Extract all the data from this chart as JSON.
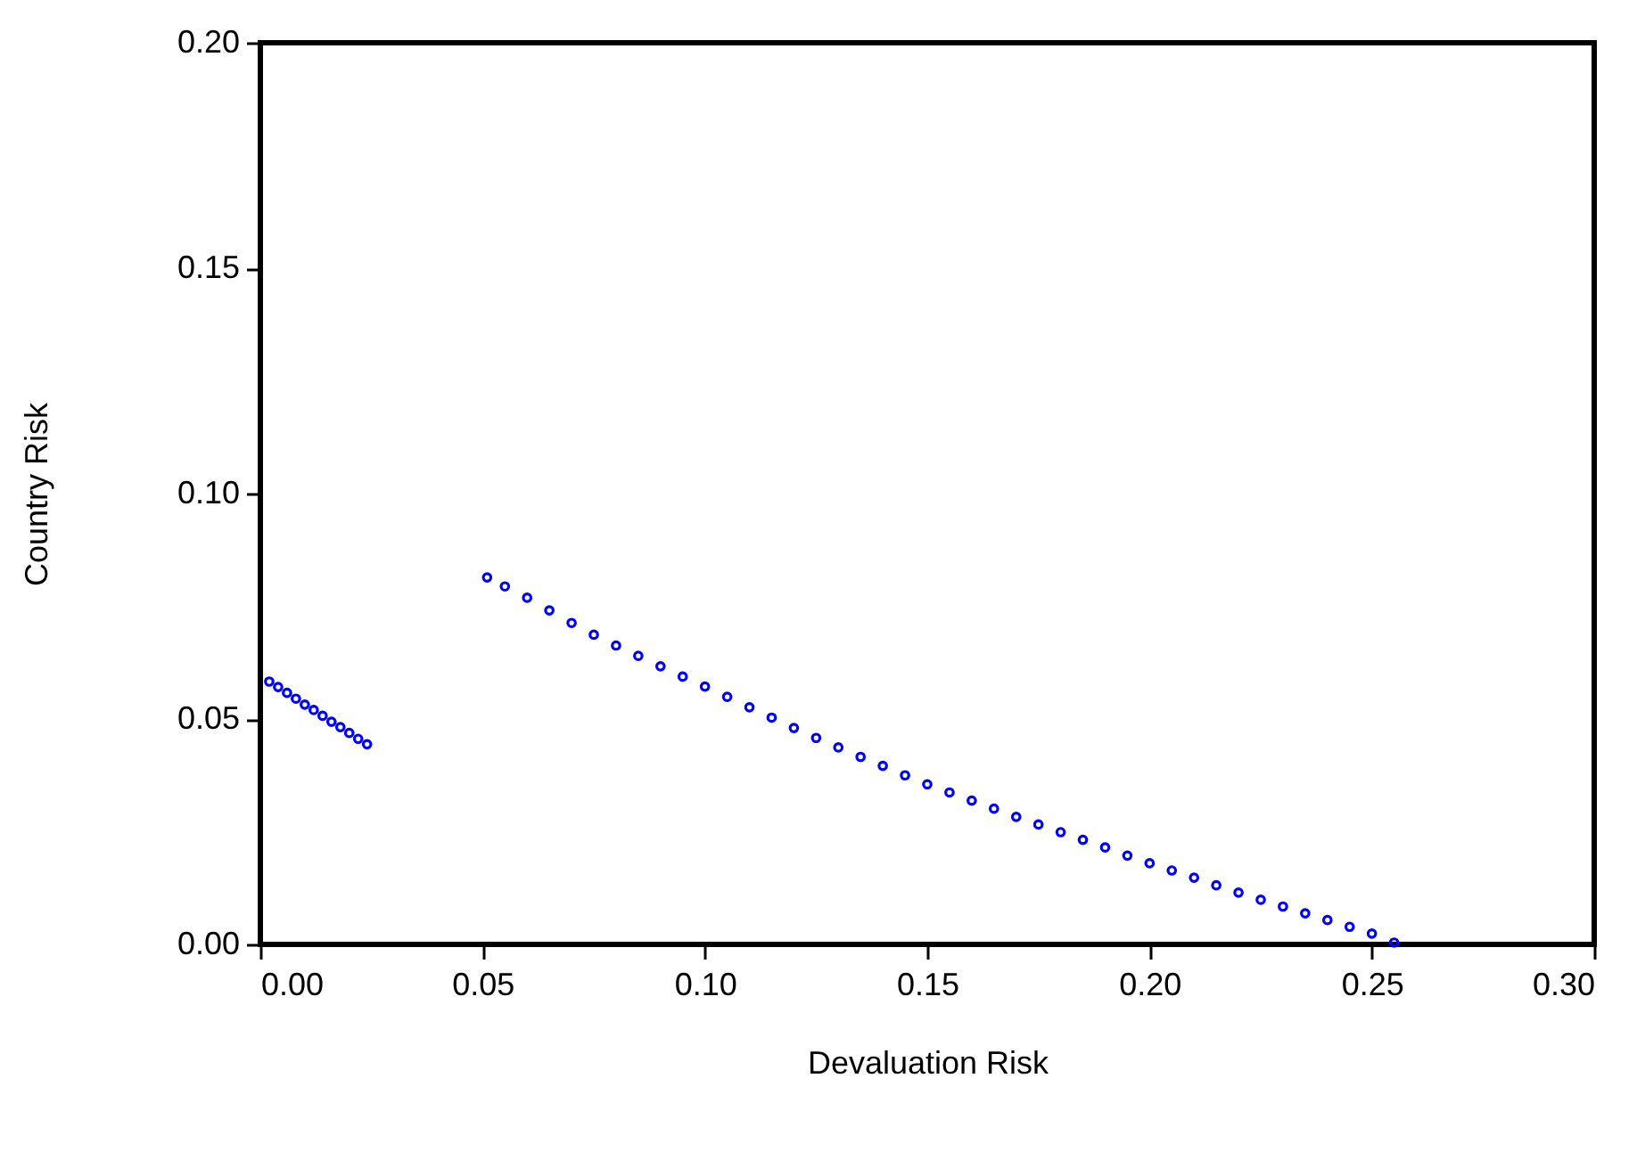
{
  "chart_data": {
    "type": "scatter",
    "xlabel": "Devaluation Risk",
    "ylabel": "Country Risk",
    "xlim": [
      0,
      0.3
    ],
    "xticks": [
      {
        "value": 0,
        "label": "0.00"
      },
      {
        "value": 0.05,
        "label": "0.05"
      },
      {
        "value": 0.1,
        "label": "0.10"
      },
      {
        "value": 0.15,
        "label": "0.15"
      },
      {
        "value": 0.2,
        "label": "0.20"
      },
      {
        "value": 0.25,
        "label": "0.25"
      },
      {
        "value": 0.3,
        "label": "0.30"
      }
    ],
    "ylim": [
      0,
      0.2
    ],
    "yticks": [
      {
        "value": 0,
        "label": "0.00"
      },
      {
        "value": 0.05,
        "label": "0.05"
      },
      {
        "value": 0.1,
        "label": "0.10"
      },
      {
        "value": 0.15,
        "label": "0.15"
      },
      {
        "value": 0.2,
        "label": "0.20"
      }
    ],
    "grid": false,
    "legend": false,
    "marker": "circle",
    "series": [
      {
        "color": "#0000ff",
        "x": [
          0.002,
          0.004,
          0.006,
          0.008,
          0.01,
          0.012,
          0.014,
          0.016,
          0.018,
          0.02,
          0.022,
          0.024,
          0.051,
          0.055,
          0.06,
          0.065,
          0.07,
          0.075,
          0.08,
          0.085,
          0.09,
          0.095,
          0.1,
          0.105,
          0.11,
          0.115,
          0.12,
          0.125,
          0.13,
          0.135,
          0.14,
          0.145,
          0.15,
          0.155,
          0.16,
          0.165,
          0.17,
          0.175,
          0.18,
          0.185,
          0.19,
          0.195,
          0.2,
          0.205,
          0.21,
          0.215,
          0.22,
          0.225,
          0.23,
          0.235,
          0.24,
          0.245,
          0.25,
          0.255
        ],
        "values": [
          0.0583,
          0.0571,
          0.0558,
          0.0545,
          0.0532,
          0.052,
          0.0507,
          0.0494,
          0.0482,
          0.0469,
          0.0456,
          0.0444,
          0.0814,
          0.0794,
          0.0769,
          0.0741,
          0.0713,
          0.0687,
          0.0663,
          0.064,
          0.0617,
          0.0594,
          0.0572,
          0.0549,
          0.0526,
          0.0503,
          0.048,
          0.0458,
          0.0437,
          0.0416,
          0.0396,
          0.0375,
          0.0355,
          0.0337,
          0.0319,
          0.0301,
          0.0283,
          0.0266,
          0.0249,
          0.0232,
          0.0215,
          0.0197,
          0.018,
          0.0164,
          0.0148,
          0.0131,
          0.0115,
          0.0099,
          0.0084,
          0.0069,
          0.0054,
          0.0039,
          0.0024,
          0.0004
        ]
      }
    ]
  }
}
